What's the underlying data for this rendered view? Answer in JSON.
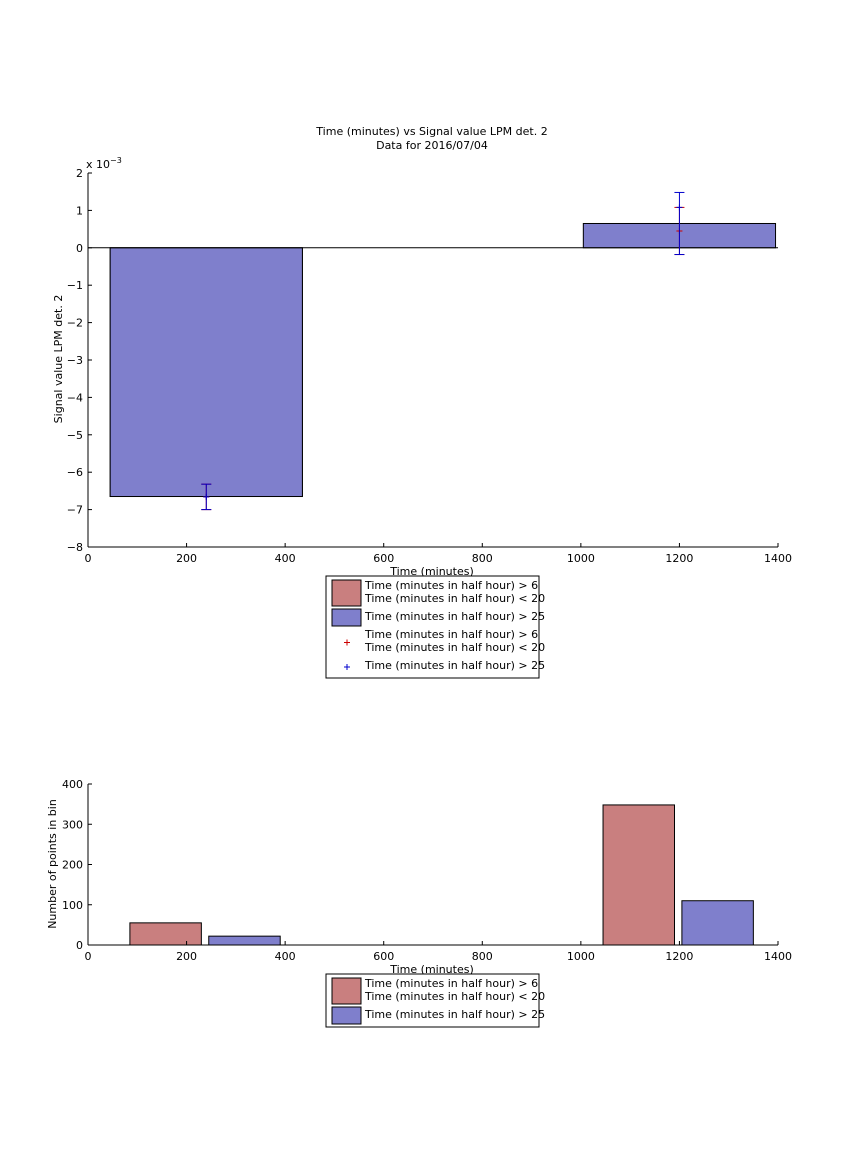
{
  "chart_data": [
    {
      "type": "bar",
      "title": "Time (minutes) vs Signal value LPM det. 2",
      "subtitle": "Data for 2016/07/04",
      "xlabel": "Time (minutes)",
      "ylabel": "Signal value LPM det. 2",
      "exponent": "x 10",
      "exponent_power": "−3",
      "xlim": [
        0,
        1400
      ],
      "ylim": [
        -8,
        2
      ],
      "xticks": [
        "0",
        "200",
        "400",
        "600",
        "800",
        "1000",
        "1200",
        "1400"
      ],
      "yticks": [
        "−8",
        "−7",
        "−6",
        "−5",
        "−4",
        "−3",
        "−2",
        "−1",
        "0",
        "1",
        "2"
      ],
      "xtick_values": [
        0,
        200,
        400,
        600,
        800,
        1000,
        1200,
        1400
      ],
      "ytick_values": [
        -8,
        -7,
        -6,
        -5,
        -4,
        -3,
        -2,
        -1,
        0,
        1,
        2
      ],
      "bar_colors": [
        "#c97f7f",
        "#7f7fcc"
      ],
      "series": [
        {
          "name": "Time (minutes in half hour) > 6 Time (minutes in half hour) < 20",
          "color": "#c97f7f",
          "bars": [
            {
              "x0": 45,
              "x1": 435,
              "value": -6.65
            },
            {
              "x0": 1005,
              "x1": 1395,
              "value": 0.0
            }
          ]
        },
        {
          "name": "Time (minutes in half hour) > 25",
          "color": "#7f7fcc",
          "bars": [
            {
              "x0": 45,
              "x1": 435,
              "value": -6.65
            },
            {
              "x0": 1005,
              "x1": 1395,
              "value": 0.65
            }
          ]
        }
      ],
      "errorbars": [
        {
          "series": "red",
          "color": "#cc0000",
          "x": 240,
          "y": -6.66,
          "low": -7.0,
          "high": -6.32
        },
        {
          "series": "blue",
          "color": "#0000cc",
          "x": 240,
          "y": -6.66,
          "low": -7.0,
          "high": -6.32
        },
        {
          "series": "red",
          "color": "#cc0000",
          "x": 1200,
          "y": 0.45,
          "low": -0.18,
          "high": 1.08
        },
        {
          "series": "blue",
          "color": "#0000cc",
          "x": 1200,
          "y": 1.08,
          "low": -0.18,
          "high": 1.48
        }
      ],
      "legend": [
        {
          "type": "patch",
          "color": "#c97f7f",
          "lines": [
            "Time (minutes in half hour) > 6",
            "Time (minutes in half hour) < 20"
          ]
        },
        {
          "type": "patch",
          "color": "#7f7fcc",
          "lines": [
            "Time (minutes in half hour) > 25"
          ]
        },
        {
          "type": "marker",
          "color": "#cc0000",
          "lines": [
            "Time (minutes in half hour) > 6",
            "Time (minutes in half hour) < 20"
          ]
        },
        {
          "type": "marker",
          "color": "#0000cc",
          "lines": [
            "Time (minutes in half hour) > 25"
          ]
        }
      ],
      "legend_position": "below"
    },
    {
      "type": "bar",
      "xlabel": "Time (minutes)",
      "ylabel": "Number of points in bin",
      "xlim": [
        0,
        1400
      ],
      "ylim": [
        0,
        400
      ],
      "xticks": [
        "0",
        "200",
        "400",
        "600",
        "800",
        "1000",
        "1200",
        "1400"
      ],
      "yticks": [
        "0",
        "100",
        "200",
        "300",
        "400"
      ],
      "xtick_values": [
        0,
        200,
        400,
        600,
        800,
        1000,
        1200,
        1400
      ],
      "ytick_values": [
        0,
        100,
        200,
        300,
        400
      ],
      "series": [
        {
          "name": "Time (minutes in half hour) > 6 Time (minutes in half hour) < 20",
          "color": "#c97f7f",
          "bars": [
            {
              "x0": 85,
              "x1": 230,
              "value": 55
            },
            {
              "x0": 1045,
              "x1": 1190,
              "value": 348
            }
          ]
        },
        {
          "name": "Time (minutes in half hour) > 25",
          "color": "#7f7fcc",
          "bars": [
            {
              "x0": 245,
              "x1": 390,
              "value": 22
            },
            {
              "x0": 1205,
              "x1": 1350,
              "value": 110
            }
          ]
        }
      ],
      "legend": [
        {
          "type": "patch",
          "color": "#c97f7f",
          "lines": [
            "Time (minutes in half hour) > 6",
            "Time (minutes in half hour) < 20"
          ]
        },
        {
          "type": "patch",
          "color": "#7f7fcc",
          "lines": [
            "Time (minutes in half hour) > 25"
          ]
        }
      ],
      "legend_position": "below"
    }
  ]
}
